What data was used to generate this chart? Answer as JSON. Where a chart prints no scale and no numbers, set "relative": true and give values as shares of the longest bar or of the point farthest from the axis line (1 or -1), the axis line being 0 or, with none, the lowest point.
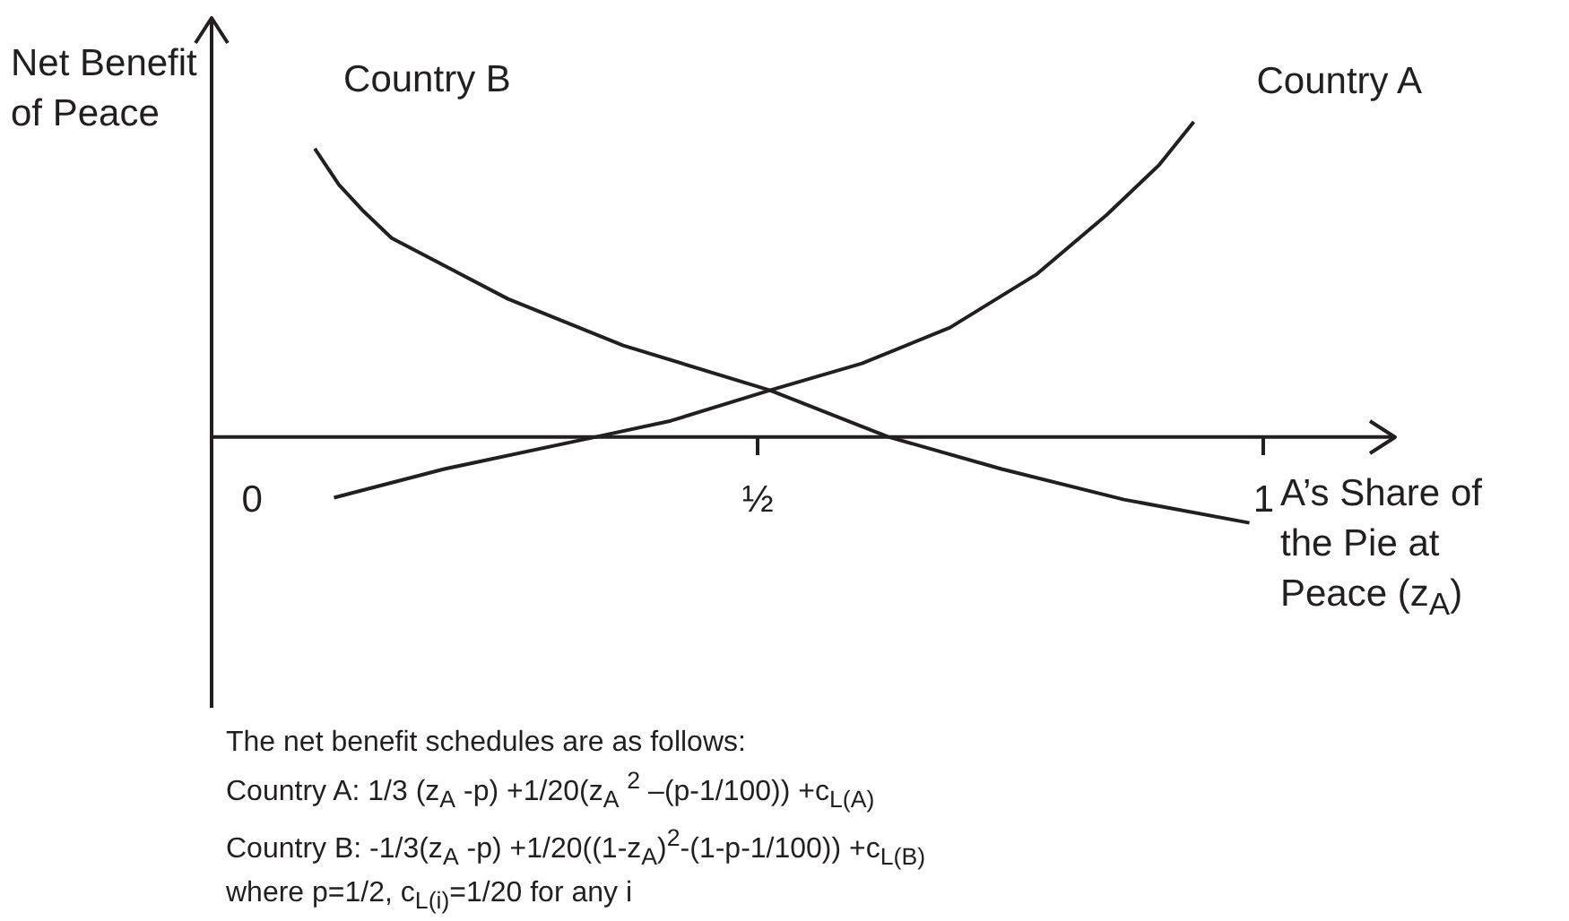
{
  "chart_data": {
    "type": "line",
    "relative": true,
    "xlabel": "A’s Share of the Pie at Peace (z$_{A}$)",
    "ylabel": "Net Benefit of Peace",
    "xlim": [
      -0.04,
      1.13
    ],
    "xticks": [
      0,
      {
        "value": 0.5,
        "label": "½"
      },
      1
    ],
    "series": [
      {
        "name": "Country A",
        "color": "#231f20",
        "x": [
          0.081,
          0.19,
          0.34,
          0.414,
          0.512,
          0.603,
          0.69,
          0.776,
          0.845,
          0.897,
          0.931
        ],
        "values": [
          -0.193,
          -0.102,
          0,
          0.051,
          0.148,
          0.233,
          0.347,
          0.517,
          0.705,
          0.864,
          1
        ]
      },
      {
        "name": "Country B",
        "color": "#231f20",
        "x": [
          0.062,
          0.086,
          0.109,
          0.138,
          0.253,
          0.367,
          0.512,
          0.629,
          0.741,
          0.862,
          0.986
        ],
        "values": [
          0.915,
          0.8,
          0.72,
          0.631,
          0.438,
          0.29,
          0.148,
          0,
          -0.102,
          -0.199,
          -0.273
        ]
      }
    ],
    "annotations": [
      "The net benefit schedules are as follows:",
      "Country A: 1/3 (z$_{A}$ -p) +1/20(z$_{A}$ $^{2}$ –(p-1/100)) +c$_{L(A)}$",
      "Country B: -1/3(z$_{A}$ -p) +1/20((1-z$_{A}$)$^{2}$-(1-p-1/100)) +c$_{L(B)}$",
      "where p=1/2, c$_{L(i)}$=1/20 for any i"
    ],
    "legend": false,
    "grid": false,
    "marker": "none",
    "line_style": "solid"
  }
}
